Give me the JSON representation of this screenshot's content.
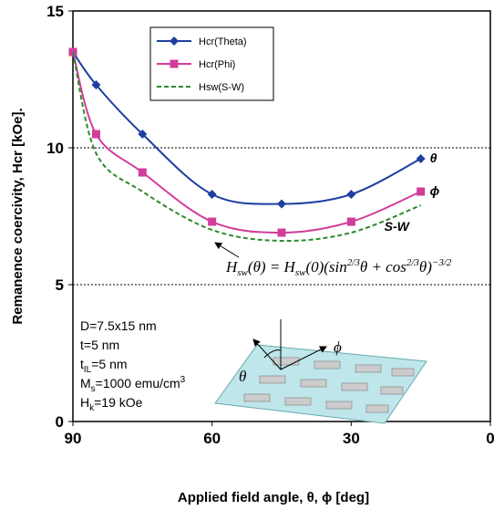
{
  "chart_data": {
    "type": "line",
    "x_label": "Applied field angle, θ, ϕ [deg]",
    "y_label": "Remanence coercivity, Hcr [kOe].",
    "xlim": [
      90,
      0
    ],
    "ylim": [
      0,
      15
    ],
    "xticks": [
      90,
      60,
      30,
      0
    ],
    "yticks": [
      0,
      5,
      10,
      15
    ],
    "grid": true,
    "x": [
      90,
      85,
      75,
      60,
      45,
      30,
      15
    ],
    "series": [
      {
        "name": "Hcr(Theta)",
        "color": "#1f3fa0",
        "marker": "diamond",
        "dashed": false,
        "label": "θ",
        "values": [
          13.5,
          12.3,
          10.5,
          8.3,
          7.95,
          8.3,
          9.6
        ]
      },
      {
        "name": "Hcr(Phi)",
        "color": "#d23c9a",
        "marker": "square",
        "dashed": false,
        "label": "ϕ",
        "values": [
          13.5,
          10.5,
          9.1,
          7.3,
          6.9,
          7.3,
          8.4
        ]
      },
      {
        "name": "Hsw(S-W)",
        "color": "#2e8b2e",
        "marker": "none",
        "dashed": true,
        "label": "S-W",
        "values": [
          13.5,
          9.8,
          8.4,
          7.0,
          6.6,
          6.9,
          7.9
        ]
      }
    ],
    "formula": [
      "H",
      "sw",
      "(θ) = H",
      "sw",
      "(0)(sin",
      "2/3",
      "θ + cos",
      "2/3",
      "θ)",
      "−3/2"
    ],
    "parameters": [
      [
        "D=7.5x15 nm"
      ],
      [
        "t=5 nm"
      ],
      [
        "t",
        "IL",
        "=5 nm"
      ],
      [
        "M",
        "s",
        "=1000 emu/cm",
        "3"
      ],
      [
        "H",
        "k",
        "=19 kOe"
      ]
    ],
    "diagram_labels": [
      "θ",
      "ϕ"
    ]
  }
}
